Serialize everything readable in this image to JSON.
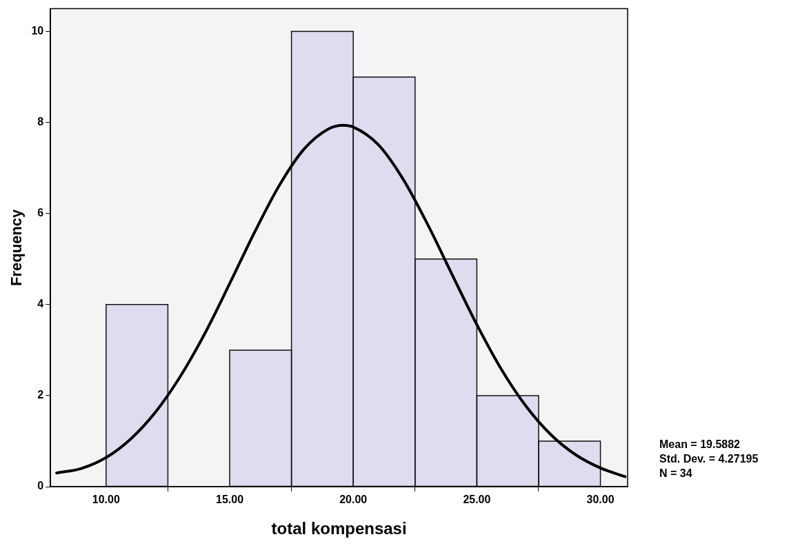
{
  "chart_data": {
    "type": "histogram",
    "xlabel": "total kompensasi",
    "ylabel": "Frequency",
    "bins": [
      10,
      12.5,
      15,
      17.5,
      20,
      22.5,
      25,
      27.5,
      30
    ],
    "values": [
      4,
      0,
      3,
      10,
      9,
      5,
      2,
      1
    ],
    "color": "#dedcee",
    "series": [
      {
        "type": "line",
        "color": "#000000",
        "x": [
          8,
          9,
          10,
          11,
          12,
          13,
          14,
          15,
          16,
          17,
          18,
          19,
          19.6,
          20,
          21,
          22,
          23,
          24,
          25,
          26,
          27,
          28,
          29,
          30,
          31
        ],
        "values": [
          0.3,
          0.4,
          0.64,
          1.05,
          1.64,
          2.42,
          3.37,
          4.46,
          5.58,
          6.61,
          7.41,
          7.86,
          7.94,
          7.9,
          7.52,
          6.77,
          5.77,
          4.66,
          3.56,
          2.57,
          1.76,
          1.14,
          0.7,
          0.41,
          0.22
        ]
      }
    ],
    "xlim": [
      7.75,
      31.1
    ],
    "xticks": [
      {
        "value": 10,
        "label": "10.00"
      },
      {
        "value": 15,
        "label": "15.00"
      },
      {
        "value": 20,
        "label": "20.00"
      },
      {
        "value": 25,
        "label": "25.00"
      },
      {
        "value": 30,
        "label": "30.00"
      }
    ],
    "ylim": [
      0,
      10.5
    ],
    "yticks": [
      0,
      2,
      4,
      6,
      8,
      10
    ],
    "annotations": [
      "Mean = 19.5882",
      "Std. Dev. = 4.27195",
      "N = 34"
    ]
  }
}
